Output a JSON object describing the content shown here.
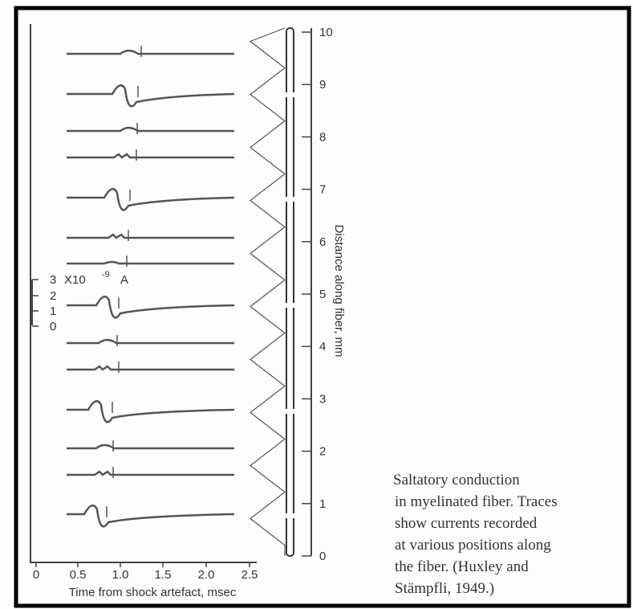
{
  "x_axis": {
    "label": "Time from shock artefact, msec",
    "ticks": [
      "0",
      "0.5",
      "1.0",
      "1.5",
      "2.0",
      "2.5"
    ]
  },
  "y_axis": {
    "label": "Distance along fiber, mm",
    "ticks": [
      "10",
      "9",
      "8",
      "7",
      "6",
      "5",
      "4",
      "3",
      "2",
      "1",
      "0"
    ]
  },
  "scale": {
    "top": "3",
    "unit": "X10",
    "exponent": "-9",
    "suffix": "A",
    "ticks": [
      "2",
      "1",
      "0"
    ]
  },
  "caption": [
    "Saltatory conduction",
    "in myelinated fiber. Traces",
    "show currents recorded",
    "at various positions along",
    "the fiber. (Huxley and",
    "Stämpfli, 1949.)"
  ]
}
